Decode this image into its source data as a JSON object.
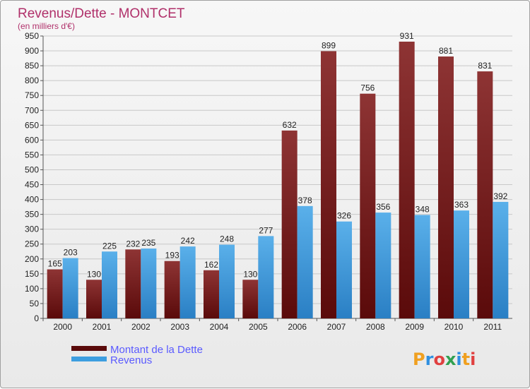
{
  "chart_data": {
    "type": "bar",
    "title": "Revenus/Dette - MONTCET",
    "subtitle": "(en milliers d'€)",
    "categories": [
      "2000",
      "2001",
      "2002",
      "2003",
      "2004",
      "2005",
      "2006",
      "2007",
      "2008",
      "2009",
      "2010",
      "2011"
    ],
    "series": [
      {
        "name": "Montant de la Dette",
        "values": [
          165,
          130,
          232,
          193,
          162,
          130,
          632,
          899,
          756,
          931,
          881,
          831
        ],
        "color": "#7a1c1c"
      },
      {
        "name": "Revenus",
        "values": [
          203,
          225,
          235,
          242,
          248,
          277,
          378,
          326,
          356,
          348,
          363,
          392
        ],
        "color": "#3d9ee0"
      }
    ],
    "ylim": [
      0,
      950
    ],
    "yticks": [
      0,
      50,
      100,
      150,
      200,
      250,
      300,
      350,
      400,
      450,
      500,
      550,
      600,
      650,
      700,
      750,
      800,
      850,
      900,
      950
    ],
    "grid": true,
    "legend_position": "bottom-left"
  },
  "logo": {
    "text": "Proxiti"
  }
}
